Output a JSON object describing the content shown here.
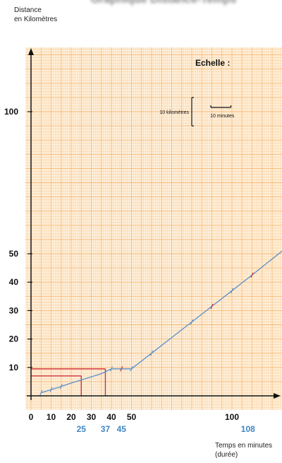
{
  "header": {
    "title": "Graphique Distance-Temps"
  },
  "chart_data": {
    "type": "line",
    "ylabel": [
      "Distance",
      "en Kilomètres"
    ],
    "xlabel": [
      "Temps en minutes",
      "(durée)"
    ],
    "xlim": [
      0,
      125
    ],
    "ylim": [
      0,
      125
    ],
    "x_ticks": [
      0,
      10,
      20,
      30,
      40,
      50,
      100
    ],
    "x_tick_labels": [
      "0",
      "10",
      "20",
      "30",
      "40",
      "50",
      "100"
    ],
    "x_extra_ticks": [
      25,
      37,
      45,
      108
    ],
    "x_extra_tick_labels": [
      "25",
      "37",
      "45",
      "108"
    ],
    "y_ticks": [
      10,
      20,
      30,
      40,
      50,
      100
    ],
    "y_tick_labels": [
      "10",
      "20",
      "30",
      "40",
      "50",
      "100"
    ],
    "series": [
      {
        "color": "#5b8fc9",
        "x": [
          5,
          10,
          15,
          20,
          25,
          30,
          35,
          40,
          45,
          50,
          60,
          70,
          80,
          90,
          100,
          110,
          125
        ],
        "y": [
          1.1,
          2.2,
          3.3,
          4.5,
          5.6,
          6.7,
          7.8,
          9.5,
          9.5,
          9.5,
          15,
          20.5,
          26,
          31.5,
          37,
          42.5,
          51
        ]
      }
    ],
    "markers_blue": [
      5,
      10,
      15,
      40,
      50,
      60,
      80,
      100
    ],
    "markers_red": [
      45,
      90,
      110
    ],
    "reference_lines": {
      "color": "#d02a36",
      "horizontal": [
        {
          "y": 7,
          "x_end": 25
        },
        {
          "y": 9.5,
          "x_end": 37
        }
      ],
      "vertical": [
        {
          "x": 25,
          "y_end": 7
        },
        {
          "x": 37,
          "y_end": 9.5
        }
      ]
    },
    "scale_legend": {
      "title": "Echelle :",
      "distance_label": "10 kilomètres",
      "time_label": "10 minutes"
    },
    "grid": true,
    "grid_color": "#f5b66d",
    "background_color": "#fff1de",
    "legend_position": "top-right"
  }
}
